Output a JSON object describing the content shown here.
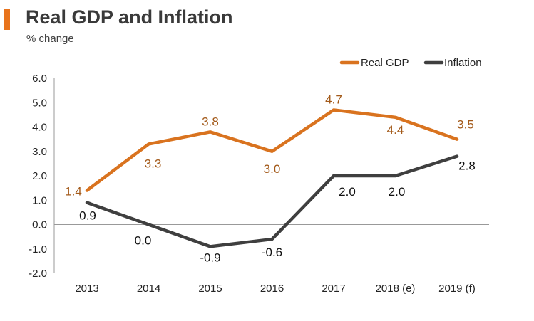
{
  "header": {
    "title": "Real GDP and Inflation",
    "subtitle": "% change"
  },
  "colors": {
    "accent": "#E8731C",
    "gdp": "#D9731F",
    "gdp_label": "#A35A1A",
    "inflation": "#3F3F3F",
    "inflation_label": "#111111",
    "axis": "#999999"
  },
  "chart_data": {
    "type": "line",
    "title": "Real GDP and Inflation",
    "subtitle": "% change",
    "categories": [
      "2013",
      "2014",
      "2015",
      "2016",
      "2017",
      "2018 (e)",
      "2019 (f)"
    ],
    "yticks": [
      "6.0",
      "5.0",
      "4.0",
      "3.0",
      "2.0",
      "1.0",
      "0.0",
      "-1.0",
      "-2.0"
    ],
    "ylim": [
      -2,
      6
    ],
    "legend_position": "top-right",
    "series": [
      {
        "name": "Real GDP",
        "values": [
          1.4,
          3.3,
          3.8,
          3.0,
          4.7,
          4.4,
          3.5
        ],
        "labels": [
          "1.4",
          "3.3",
          "3.8",
          "3.0",
          "4.7",
          "4.4",
          "3.5"
        ]
      },
      {
        "name": "Inflation",
        "values": [
          0.9,
          0.0,
          -0.9,
          -0.6,
          2.0,
          2.0,
          2.8
        ],
        "labels": [
          "0.9",
          "0.0",
          "-0.9",
          "-0.6",
          "2.0",
          "2.0",
          "2.8"
        ]
      }
    ]
  }
}
